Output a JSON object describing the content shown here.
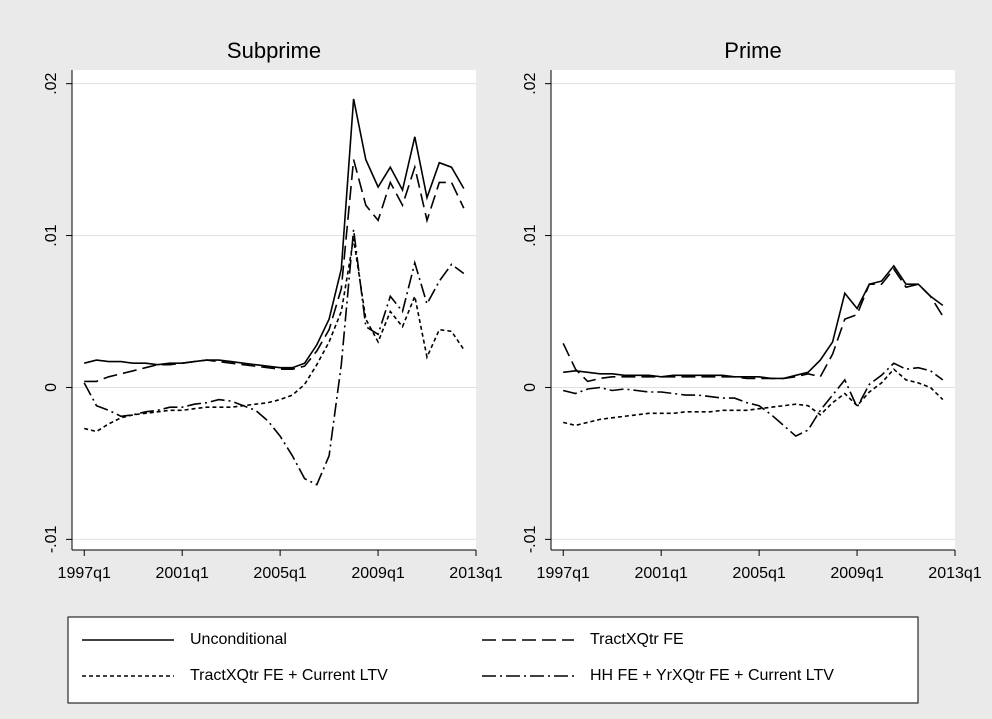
{
  "chart_data": [
    {
      "type": "line",
      "title": "Subprime",
      "x": [
        1997,
        1997.5,
        1998,
        1998.5,
        1999,
        1999.5,
        2000,
        2000.5,
        2001,
        2001.5,
        2002,
        2002.5,
        2003,
        2003.5,
        2004,
        2004.5,
        2005,
        2005.5,
        2006,
        2006.5,
        2007,
        2007.5,
        2008,
        2008.5,
        2009,
        2009.5,
        2010,
        2010.5,
        2011,
        2011.5,
        2012,
        2012.5
      ],
      "xlim": [
        1996.5,
        2013
      ],
      "xticks": [
        {
          "value": 1997,
          "label": "1997q1"
        },
        {
          "value": 2001,
          "label": "2001q1"
        },
        {
          "value": 2005,
          "label": "2005q1"
        },
        {
          "value": 2009,
          "label": "2009q1"
        },
        {
          "value": 2013,
          "label": "2013q1"
        }
      ],
      "ylim": [
        -0.0107,
        0.0209
      ],
      "yticks": [
        {
          "value": -0.01,
          "label": "-.01"
        },
        0,
        {
          "value": 0.01,
          "label": ".01"
        },
        {
          "value": 0.02,
          "label": ".02"
        }
      ],
      "grid": true,
      "series": [
        {
          "name": "Unconditional",
          "color": "#000000",
          "dash": "solid",
          "values": [
            0.0016,
            0.0018,
            0.0017,
            0.0017,
            0.0016,
            0.0016,
            0.0015,
            0.0016,
            0.0016,
            0.0017,
            0.0018,
            0.0018,
            0.0017,
            0.0016,
            0.0015,
            0.0014,
            0.0013,
            0.0013,
            0.0016,
            0.0028,
            0.0045,
            0.0078,
            0.019,
            0.015,
            0.0132,
            0.0145,
            0.013,
            0.0165,
            0.0125,
            0.0148,
            0.0145,
            0.0131
          ]
        },
        {
          "name": "TractXQtr FE",
          "color": "#000000",
          "dash": "dash",
          "values": [
            0.0004,
            0.0004,
            0.0007,
            0.0009,
            0.0011,
            0.0013,
            0.0015,
            0.0015,
            0.0016,
            0.0017,
            0.0018,
            0.0017,
            0.0016,
            0.0015,
            0.0014,
            0.0013,
            0.0012,
            0.0012,
            0.0014,
            0.0024,
            0.0038,
            0.0065,
            0.015,
            0.012,
            0.011,
            0.0135,
            0.012,
            0.0145,
            0.011,
            0.0135,
            0.0135,
            0.0118
          ]
        },
        {
          "name": "TractXQtr FE + Current LTV",
          "color": "#000000",
          "dash": "dot",
          "values": [
            -0.0027,
            -0.0029,
            -0.0024,
            -0.002,
            -0.0018,
            -0.0017,
            -0.0016,
            -0.0015,
            -0.0015,
            -0.0014,
            -0.0013,
            -0.0013,
            -0.0013,
            -0.0012,
            -0.0011,
            -0.001,
            -0.0008,
            -0.0005,
            0.0002,
            0.0015,
            0.003,
            0.005,
            0.0098,
            0.0045,
            0.003,
            0.005,
            0.004,
            0.006,
            0.002,
            0.0038,
            0.0037,
            0.0025
          ]
        },
        {
          "name": "HH FE + YrXQtr FE + Current LTV",
          "color": "#000000",
          "dash": "dashdot",
          "values": [
            0.0003,
            -0.0012,
            -0.0015,
            -0.0019,
            -0.0018,
            -0.0016,
            -0.0015,
            -0.0013,
            -0.0013,
            -0.0011,
            -0.001,
            -0.0008,
            -0.0009,
            -0.0012,
            -0.0015,
            -0.0022,
            -0.0032,
            -0.0045,
            -0.006,
            -0.0064,
            -0.0045,
            0.0015,
            0.0104,
            0.004,
            0.0035,
            0.006,
            0.005,
            0.0082,
            0.0055,
            0.007,
            0.0081,
            0.0075
          ]
        }
      ]
    },
    {
      "type": "line",
      "title": "Prime",
      "x": [
        1997,
        1997.5,
        1998,
        1998.5,
        1999,
        1999.5,
        2000,
        2000.5,
        2001,
        2001.5,
        2002,
        2002.5,
        2003,
        2003.5,
        2004,
        2004.5,
        2005,
        2005.5,
        2006,
        2006.5,
        2007,
        2007.5,
        2008,
        2008.5,
        2009,
        2009.5,
        2010,
        2010.5,
        2011,
        2011.5,
        2012,
        2012.5
      ],
      "xlim": [
        1996.5,
        2013
      ],
      "xticks": [
        {
          "value": 1997,
          "label": "1997q1"
        },
        {
          "value": 2001,
          "label": "2001q1"
        },
        {
          "value": 2005,
          "label": "2005q1"
        },
        {
          "value": 2009,
          "label": "2009q1"
        },
        {
          "value": 2013,
          "label": "2013q1"
        }
      ],
      "ylim": [
        -0.0107,
        0.0209
      ],
      "yticks": [
        {
          "value": -0.01,
          "label": "-.01"
        },
        0,
        {
          "value": 0.01,
          "label": ".01"
        },
        {
          "value": 0.02,
          "label": ".02"
        }
      ],
      "grid": true,
      "series": [
        {
          "color": "#000000",
          "dash": "solid",
          "values": [
            0.001,
            0.0011,
            0.001,
            0.0009,
            0.0009,
            0.0008,
            0.0008,
            0.0008,
            0.0007,
            0.0008,
            0.0008,
            0.0008,
            0.0008,
            0.0008,
            0.0007,
            0.0007,
            0.0007,
            0.0006,
            0.0006,
            0.0008,
            0.001,
            0.0018,
            0.003,
            0.0062,
            0.0052,
            0.0068,
            0.007,
            0.008,
            0.0068,
            0.0068,
            0.006,
            0.0054
          ]
        },
        {
          "color": "#000000",
          "dash": "dash",
          "values": [
            0.0029,
            0.0012,
            0.0004,
            0.0006,
            0.0007,
            0.0007,
            0.0007,
            0.0007,
            0.0007,
            0.0007,
            0.0007,
            0.0007,
            0.0007,
            0.0007,
            0.0007,
            0.0006,
            0.0006,
            0.0006,
            0.0006,
            0.0007,
            0.0009,
            0.0007,
            0.0022,
            0.0045,
            0.0048,
            0.0068,
            0.0068,
            0.0078,
            0.0066,
            0.0068,
            0.006,
            0.0047
          ]
        },
        {
          "color": "#000000",
          "dash": "dot",
          "values": [
            -0.0023,
            -0.0025,
            -0.0023,
            -0.0021,
            -0.002,
            -0.0019,
            -0.0018,
            -0.0017,
            -0.0017,
            -0.0017,
            -0.0016,
            -0.0016,
            -0.0016,
            -0.0015,
            -0.0015,
            -0.0015,
            -0.0014,
            -0.0013,
            -0.0012,
            -0.0011,
            -0.0012,
            -0.0018,
            -0.001,
            -0.0004,
            -0.0012,
            -0.0003,
            0.0003,
            0.0012,
            0.0005,
            0.0003,
            0,
            -0.0008
          ]
        },
        {
          "color": "#000000",
          "dash": "dashdot",
          "values": [
            -0.0002,
            -0.0004,
            -0.0001,
            0,
            -0.0002,
            -0.0001,
            -0.0002,
            -0.0003,
            -0.0003,
            -0.0004,
            -0.0005,
            -0.0005,
            -0.0006,
            -0.0007,
            -0.0007,
            -0.001,
            -0.0012,
            -0.0018,
            -0.0025,
            -0.0032,
            -0.0028,
            -0.0015,
            -0.0005,
            0.0005,
            -0.0013,
            0.0002,
            0.0008,
            0.0016,
            0.0012,
            0.0013,
            0.0011,
            0.0005
          ]
        }
      ]
    }
  ]
}
